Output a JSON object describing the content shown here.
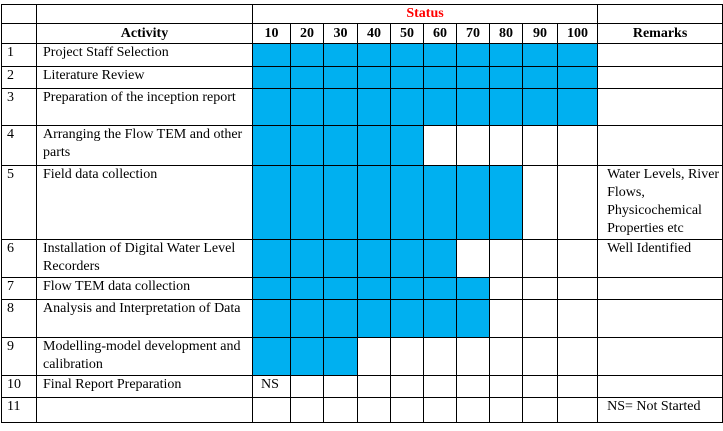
{
  "header": {
    "status": "Status",
    "activity": "Activity",
    "remarks": "Remarks",
    "status_columns": [
      "10",
      "20",
      "30",
      "40",
      "50",
      "60",
      "70",
      "80",
      "90",
      "100"
    ]
  },
  "fill_color": "#00b0f0",
  "rows": [
    {
      "num": "1",
      "activity": "Project Staff Selection",
      "progress": 100,
      "status_text": "",
      "remarks": ""
    },
    {
      "num": "2",
      "activity": "Literature Review",
      "progress": 100,
      "status_text": "",
      "remarks": ""
    },
    {
      "num": "3",
      "activity": "Preparation of the inception report",
      "progress": 100,
      "status_text": "",
      "remarks": ""
    },
    {
      "num": "4",
      "activity": "Arranging the Flow TEM and other parts",
      "progress": 50,
      "status_text": "",
      "remarks": ""
    },
    {
      "num": "5",
      "activity": "Field data collection",
      "progress": 80,
      "status_text": "",
      "remarks": "Water Levels, River Flows, Physicochemical Properties etc"
    },
    {
      "num": "6",
      "activity": "Installation of Digital Water Level Recorders",
      "progress": 60,
      "status_text": "",
      "remarks": "Well Identified"
    },
    {
      "num": "7",
      "activity": "Flow TEM data collection",
      "progress": 70,
      "status_text": "",
      "remarks": ""
    },
    {
      "num": "8",
      "activity": "Analysis and Interpretation of Data",
      "progress": 70,
      "status_text": "",
      "remarks": ""
    },
    {
      "num": "9",
      "activity": "Modelling-model development and calibration",
      "progress": 30,
      "status_text": "",
      "remarks": ""
    },
    {
      "num": "10",
      "activity": "Final Report Preparation",
      "progress": 0,
      "status_text": "NS",
      "remarks": ""
    },
    {
      "num": "11",
      "activity": "",
      "progress": 0,
      "status_text": "",
      "remarks": "NS= Not Started"
    }
  ]
}
